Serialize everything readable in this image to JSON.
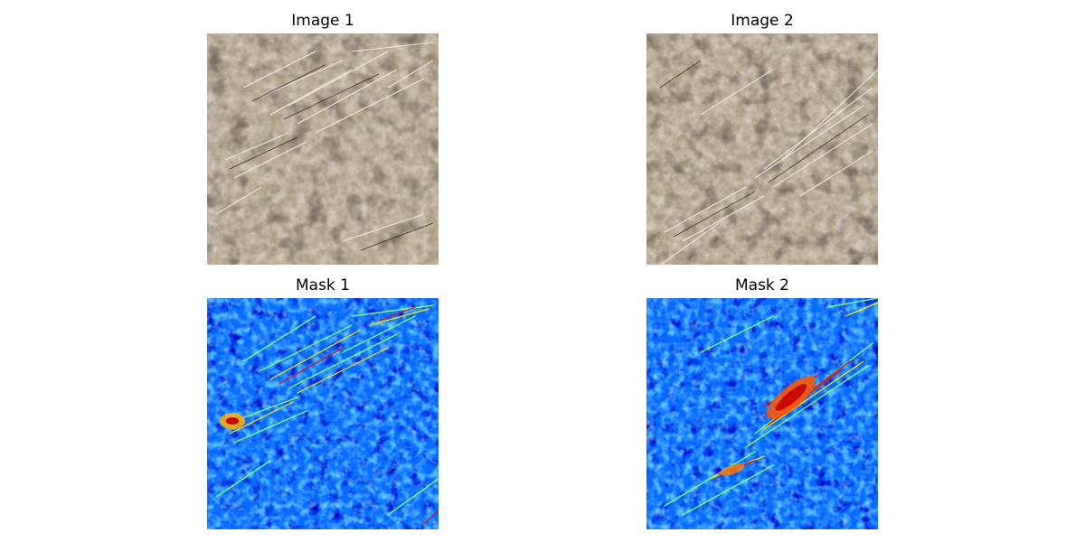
{
  "figure": {
    "panels": [
      {
        "title": "Image 1",
        "kind": "soil-photo"
      },
      {
        "title": "Image 2",
        "kind": "soil-photo"
      },
      {
        "title": "Mask 1",
        "kind": "jet-heatmap"
      },
      {
        "title": "Mask 2",
        "kind": "jet-heatmap"
      }
    ]
  },
  "colors": {
    "soil_base": "#a89a82",
    "soil_light": "#d8cbb2",
    "soil_shadow": "#3b3327",
    "straw": "#e8e4dc",
    "jet_low": "#00008f",
    "jet_mid": "#0a6cff",
    "jet_cyan": "#33c6ff",
    "jet_green": "#7dff7a",
    "jet_yellow": "#ffee00",
    "jet_red": "#e01000"
  }
}
